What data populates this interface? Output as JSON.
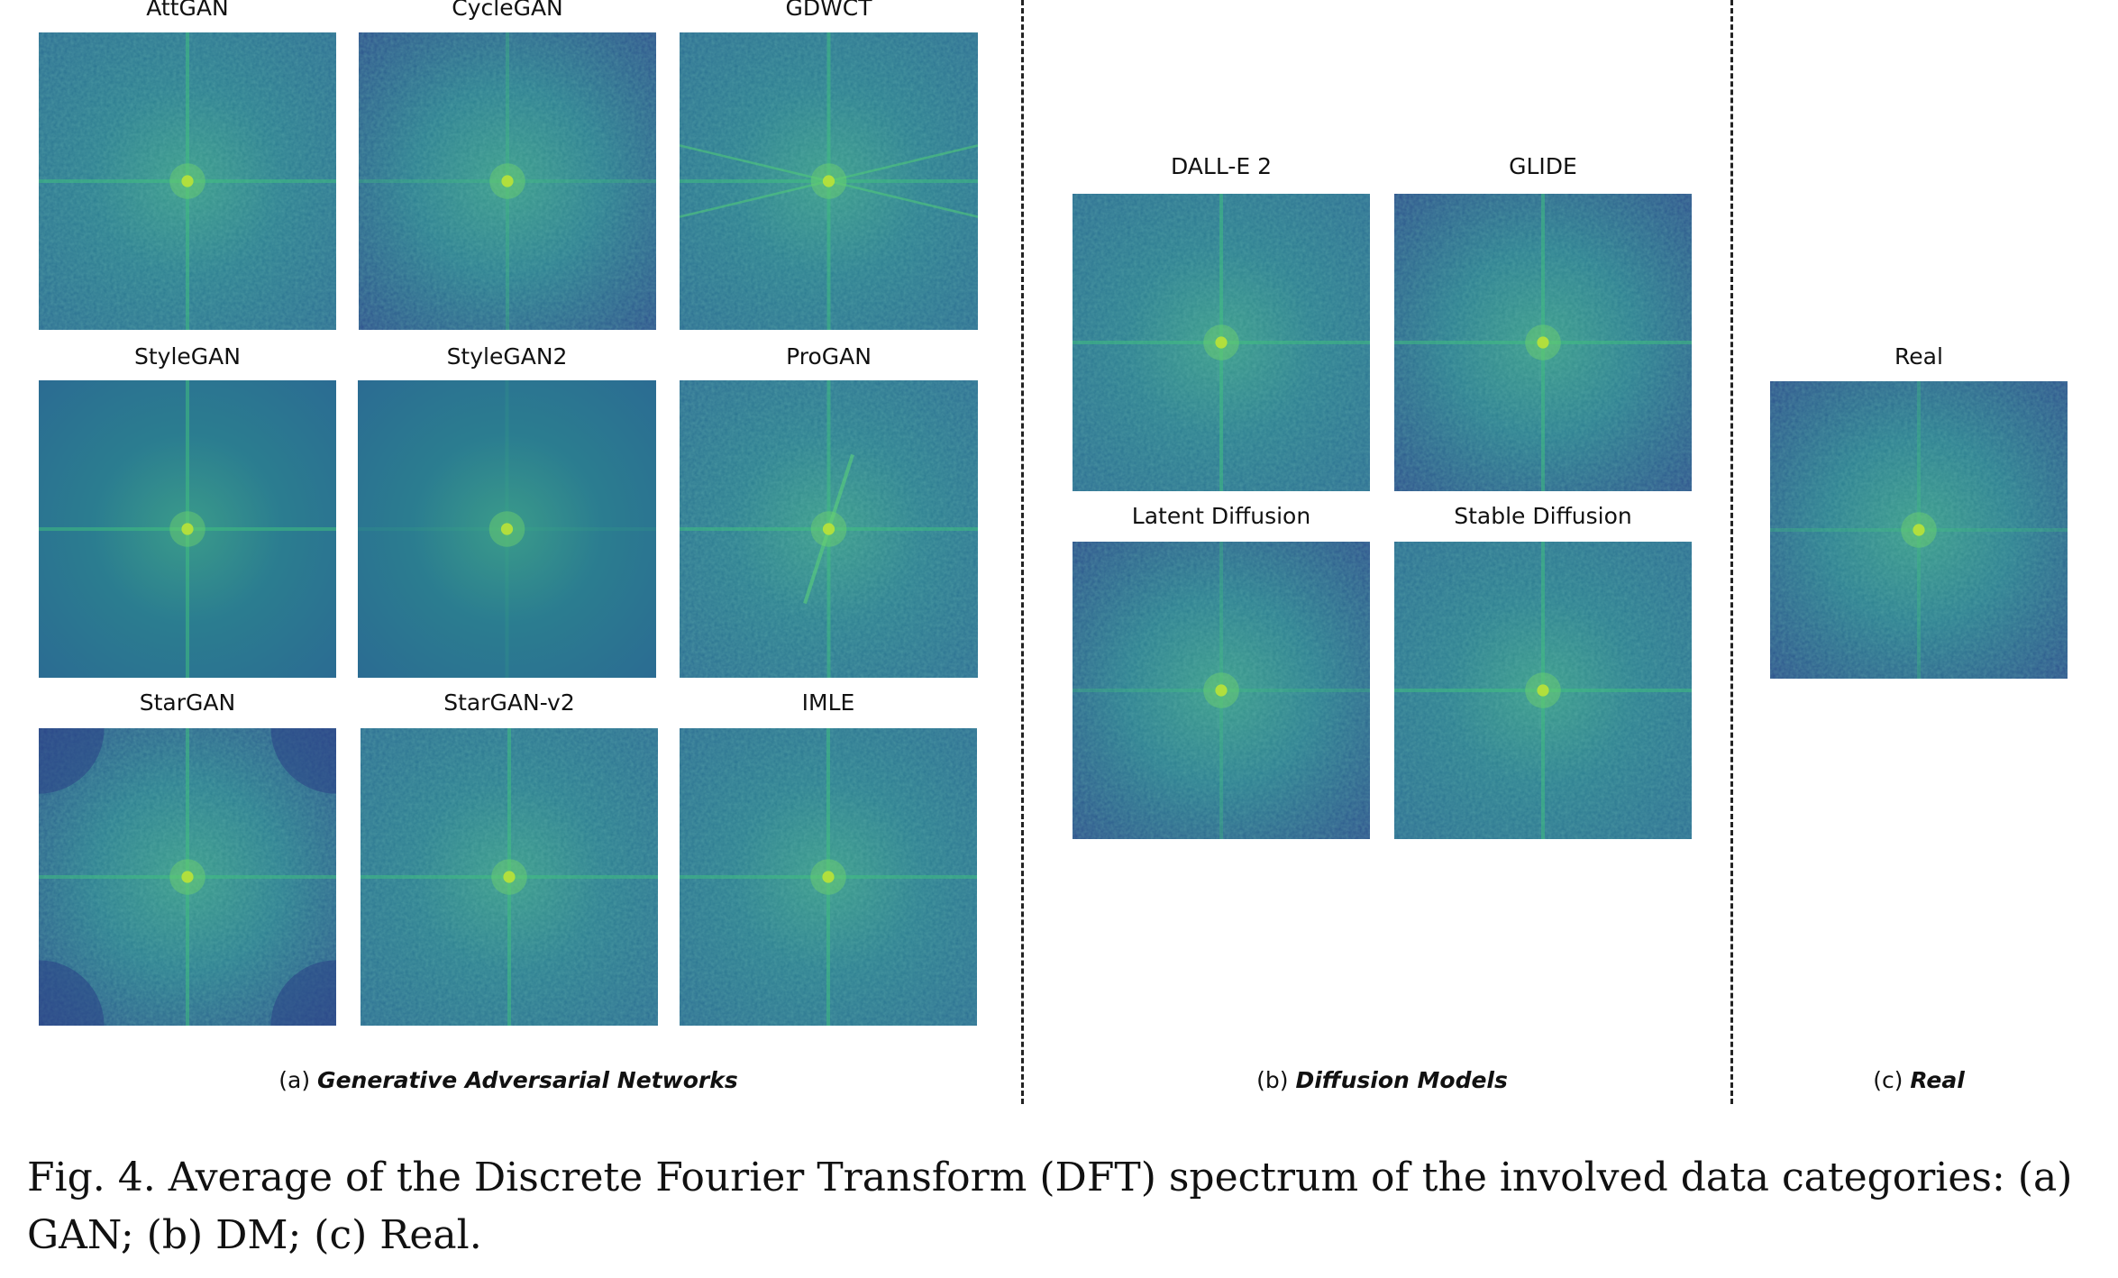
{
  "gan": {
    "panels": [
      {
        "label": "AttGAN"
      },
      {
        "label": "CycleGAN"
      },
      {
        "label": "GDWCT"
      },
      {
        "label": "StyleGAN"
      },
      {
        "label": "StyleGAN2"
      },
      {
        "label": "ProGAN"
      },
      {
        "label": "StarGAN"
      },
      {
        "label": "StarGAN-v2"
      },
      {
        "label": "IMLE"
      }
    ],
    "subcaption_prefix": "(a)",
    "subcaption_title": "Generative Adversarial Networks"
  },
  "dm": {
    "panels": [
      {
        "label": "DALL-E 2"
      },
      {
        "label": "GLIDE"
      },
      {
        "label": "Latent Diffusion"
      },
      {
        "label": "Stable Diffusion"
      }
    ],
    "subcaption_prefix": "(b)",
    "subcaption_title": "Diffusion Models"
  },
  "real": {
    "panels": [
      {
        "label": "Real"
      }
    ],
    "subcaption_prefix": "(c)",
    "subcaption_title": "Real"
  },
  "caption": {
    "text": "Fig. 4.  Average of the Discrete Fourier Transform (DFT) spectrum of the involved data categories: (a) GAN; (b) DM; (c) Real."
  },
  "colors": {
    "spectrum_dark": "#2c4f8c",
    "spectrum_mid": "#2a8a8a",
    "spectrum_bright": "#b6e03a"
  }
}
